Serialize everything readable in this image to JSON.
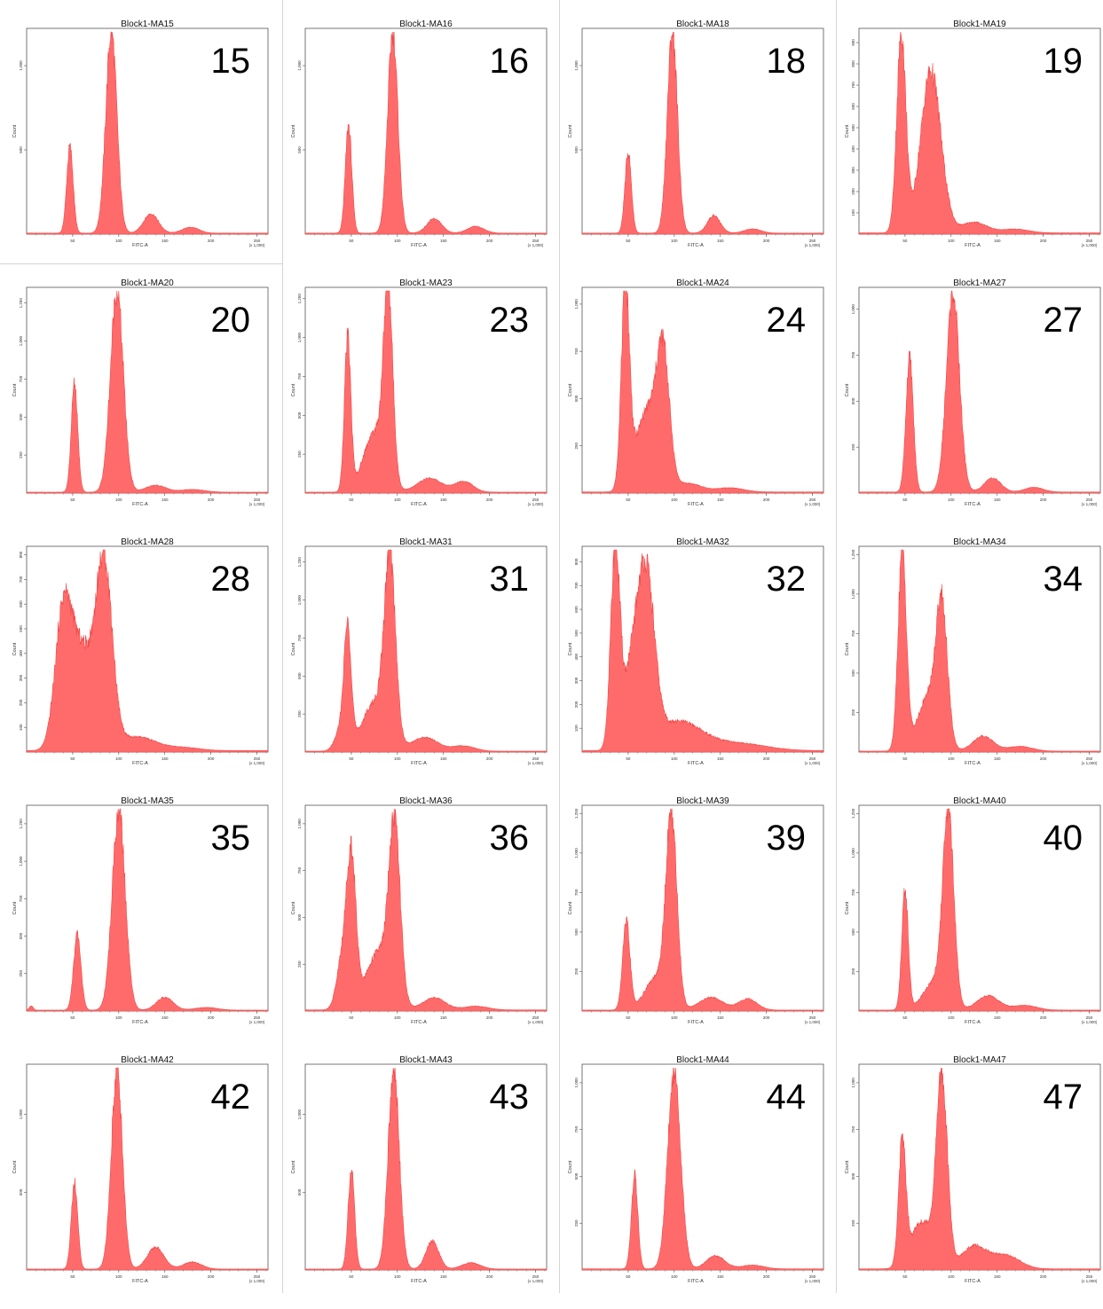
{
  "colors": {
    "fill": "#ff6b6b",
    "stroke": "#f04848",
    "axis": "#555555"
  },
  "chart_data": [
    {
      "type": "area",
      "id": "MA15",
      "title": "Block1-MA15",
      "label": "15",
      "xlabel": "FITC-A",
      "ylabel": "Count",
      "xticks": [
        "50",
        "100",
        "150",
        "200",
        "250",
        "(x 1,000)"
      ],
      "yticks": [
        "500",
        "1,000"
      ],
      "ymax": 1200,
      "peaks": [
        [
          47,
          3.5,
          515
        ],
        [
          92,
          6,
          1200
        ],
        [
          135,
          8,
          115
        ],
        [
          178,
          9,
          35
        ]
      ]
    },
    {
      "type": "area",
      "id": "MA16",
      "title": "Block1-MA16",
      "label": "16",
      "xlabel": "FITC-A",
      "ylabel": "Count",
      "xticks": [
        "50",
        "100",
        "150",
        "200",
        "250",
        "(x 1,000)"
      ],
      "yticks": [
        "500",
        "1,000"
      ],
      "ymax": 1200,
      "peaks": [
        [
          47,
          3.5,
          640
        ],
        [
          95,
          5.5,
          1200
        ],
        [
          140,
          8,
          85
        ],
        [
          185,
          9,
          40
        ]
      ]
    },
    {
      "type": "area",
      "id": "MA18",
      "title": "Block1-MA18",
      "label": "18",
      "xlabel": "FITC-A",
      "ylabel": "Count",
      "xticks": [
        "50",
        "100",
        "150",
        "200",
        "250",
        "(x 1,000)"
      ],
      "yticks": [
        "500",
        "1,000"
      ],
      "ymax": 1200,
      "peaks": [
        [
          50,
          3.5,
          480
        ],
        [
          98,
          5.5,
          1200
        ],
        [
          143,
          7,
          105
        ],
        [
          185,
          9,
          25
        ]
      ]
    },
    {
      "type": "area",
      "id": "MA19",
      "title": "Block1-MA19",
      "label": "19",
      "xlabel": "FITC-A",
      "ylabel": "Count",
      "xticks": [
        "50",
        "100",
        "150",
        "200",
        "250",
        "(x 1,000)"
      ],
      "yticks": [
        "100",
        "200",
        "300",
        "400",
        "500",
        "600",
        "700",
        "800",
        "900"
      ],
      "ymax": 950,
      "peaks": [
        [
          46,
          5,
          930
        ],
        [
          78,
          11,
          760
        ],
        [
          125,
          14,
          50
        ],
        [
          170,
          14,
          18
        ]
      ]
    },
    {
      "type": "area",
      "id": "MA20",
      "title": "Block1-MA20",
      "label": "20",
      "xlabel": "FITC-A",
      "ylabel": "Count",
      "xticks": [
        "50",
        "100",
        "150",
        "200",
        "250",
        "(x 1,000)"
      ],
      "yticks": [
        "250",
        "500",
        "750",
        "1,000",
        "1,250"
      ],
      "ymax": 1330,
      "peaks": [
        [
          52,
          3.5,
          720
        ],
        [
          98,
          7,
          1330
        ],
        [
          140,
          11,
          45
        ],
        [
          180,
          13,
          18
        ]
      ]
    },
    {
      "type": "area",
      "id": "MA23",
      "title": "Block1-MA23",
      "label": "23",
      "xlabel": "FITC-A",
      "ylabel": "Count",
      "xticks": [
        "50",
        "100",
        "150",
        "200",
        "250",
        "(x 1,000)"
      ],
      "yticks": [
        "250",
        "500",
        "750",
        "1,000",
        "1,250"
      ],
      "ymax": 1300,
      "peaks": [
        [
          46,
          3.5,
          980
        ],
        [
          75,
          12,
          380
        ],
        [
          90,
          5,
          1200
        ],
        [
          135,
          13,
          90
        ],
        [
          172,
          10,
          70
        ]
      ]
    },
    {
      "type": "area",
      "id": "MA24",
      "title": "Block1-MA24",
      "label": "24",
      "xlabel": "FITC-A",
      "ylabel": "Count",
      "xticks": [
        "50",
        "100",
        "150",
        "200",
        "250",
        "(x 1,000)"
      ],
      "yticks": [
        "250",
        "500",
        "750",
        "1,000"
      ],
      "ymax": 1070,
      "peaks": [
        [
          47,
          4.5,
          1050
        ],
        [
          70,
          12,
          420
        ],
        [
          88,
          7,
          670
        ],
        [
          115,
          14,
          45
        ],
        [
          160,
          15,
          22
        ]
      ]
    },
    {
      "type": "area",
      "id": "MA27",
      "title": "Block1-MA27",
      "label": "27",
      "xlabel": "FITC-A",
      "ylabel": "Count",
      "xticks": [
        "50",
        "100",
        "150",
        "200",
        "250",
        "(x 1,000)"
      ],
      "yticks": [
        "250",
        "500",
        "750",
        "1,000"
      ],
      "ymax": 1100,
      "peaks": [
        [
          55,
          4,
          730
        ],
        [
          102,
          7,
          1090
        ],
        [
          145,
          9,
          75
        ],
        [
          190,
          10,
          25
        ]
      ]
    },
    {
      "type": "area",
      "id": "MA28",
      "title": "Block1-MA28",
      "label": "28",
      "xlabel": "FITC-A",
      "ylabel": "Count",
      "xticks": [
        "50",
        "100",
        "150",
        "200",
        "250",
        "(x 1,000)"
      ],
      "yticks": [
        "100",
        "200",
        "300",
        "400",
        "500",
        "600",
        "700",
        "800"
      ],
      "ymax": 820,
      "peaks": [
        [
          40,
          9,
          560
        ],
        [
          60,
          11,
          380
        ],
        [
          84,
          9,
          760
        ],
        [
          120,
          20,
          55
        ],
        [
          170,
          18,
          12
        ]
      ]
    },
    {
      "type": "area",
      "id": "MA31",
      "title": "Block1-MA31",
      "label": "31",
      "xlabel": "FITC-A",
      "ylabel": "Count",
      "xticks": [
        "50",
        "100",
        "150",
        "200",
        "250",
        "(x 1,000)"
      ],
      "yticks": [
        "250",
        "500",
        "750",
        "1,000",
        "1,250"
      ],
      "ymax": 1330,
      "peaks": [
        [
          46,
          4,
          760
        ],
        [
          38,
          6,
          130
        ],
        [
          76,
          14,
          320
        ],
        [
          92,
          6,
          1150
        ],
        [
          130,
          14,
          90
        ],
        [
          172,
          12,
          35
        ]
      ]
    },
    {
      "type": "area",
      "id": "MA32",
      "title": "Block1-MA32",
      "label": "32",
      "xlabel": "FITC-A",
      "ylabel": "Count",
      "xticks": [
        "50",
        "100",
        "150",
        "200",
        "250",
        "(x 1,000)"
      ],
      "yticks": [
        "100",
        "200",
        "300",
        "400",
        "500",
        "600",
        "700",
        "800"
      ],
      "ymax": 850,
      "peaks": [
        [
          36,
          5,
          820
        ],
        [
          55,
          10,
          330
        ],
        [
          70,
          9,
          640
        ],
        [
          105,
          25,
          120
        ],
        [
          170,
          30,
          30
        ]
      ]
    },
    {
      "type": "area",
      "id": "MA34",
      "title": "Block1-MA34",
      "label": "34",
      "xlabel": "FITC-A",
      "ylabel": "Count",
      "xticks": [
        "50",
        "100",
        "150",
        "200",
        "250",
        "(x 1,000)"
      ],
      "yticks": [
        "250",
        "500",
        "750",
        "1,000",
        "1,250"
      ],
      "ymax": 1280,
      "peaks": [
        [
          47,
          4.5,
          1270
        ],
        [
          76,
          12,
          350
        ],
        [
          90,
          6,
          820
        ],
        [
          135,
          11,
          95
        ],
        [
          175,
          13,
          30
        ]
      ]
    },
    {
      "type": "area",
      "id": "MA35",
      "title": "Block1-MA35",
      "label": "35",
      "xlabel": "FITC-A",
      "ylabel": "Count",
      "xticks": [
        "50",
        "100",
        "150",
        "200",
        "250",
        "(x 1,000)"
      ],
      "yticks": [
        "250",
        "500",
        "750",
        "1,000",
        "1,250"
      ],
      "ymax": 1350,
      "peaks": [
        [
          55,
          4,
          500
        ],
        [
          100,
          7,
          1340
        ],
        [
          150,
          9,
          85
        ],
        [
          195,
          12,
          18
        ],
        [
          5,
          2,
          30
        ]
      ]
    },
    {
      "type": "area",
      "id": "MA36",
      "title": "Block1-MA36",
      "label": "36",
      "xlabel": "FITC-A",
      "ylabel": "Count",
      "xticks": [
        "50",
        "100",
        "150",
        "200",
        "250",
        "(x 1,000)"
      ],
      "yticks": [
        "250",
        "500",
        "750",
        "1,000"
      ],
      "ymax": 1080,
      "peaks": [
        [
          50,
          5,
          790
        ],
        [
          40,
          6,
          260
        ],
        [
          80,
          14,
          310
        ],
        [
          97,
          6,
          900
        ],
        [
          140,
          12,
          65
        ],
        [
          185,
          13,
          20
        ]
      ]
    },
    {
      "type": "area",
      "id": "MA39",
      "title": "Block1-MA39",
      "label": "39",
      "xlabel": "FITC-A",
      "ylabel": "Count",
      "xticks": [
        "50",
        "100",
        "150",
        "200",
        "250",
        "(x 1,000)"
      ],
      "yticks": [
        "250",
        "500",
        "750",
        "1,000",
        "1,250"
      ],
      "ymax": 1280,
      "peaks": [
        [
          48,
          4,
          550
        ],
        [
          80,
          12,
          200
        ],
        [
          97,
          6,
          1200
        ],
        [
          140,
          13,
          80
        ],
        [
          180,
          10,
          70
        ]
      ]
    },
    {
      "type": "area",
      "id": "MA40",
      "title": "Block1-MA40",
      "label": "40",
      "xlabel": "FITC-A",
      "ylabel": "Count",
      "xticks": [
        "50",
        "100",
        "150",
        "200",
        "250",
        "(x 1,000)"
      ],
      "yticks": [
        "250",
        "500",
        "750",
        "1,000",
        "1,250"
      ],
      "ymax": 1280,
      "peaks": [
        [
          50,
          3.5,
          760
        ],
        [
          82,
          12,
          180
        ],
        [
          97,
          6,
          1200
        ],
        [
          140,
          12,
          90
        ],
        [
          180,
          13,
          30
        ]
      ]
    },
    {
      "type": "area",
      "id": "MA42",
      "title": "Block1-MA42",
      "label": "42",
      "xlabel": "FITC-A",
      "ylabel": "Count",
      "xticks": [
        "50",
        "100",
        "150",
        "200",
        "250",
        "(x 1,000)"
      ],
      "yticks": [
        "500",
        "1,000"
      ],
      "ymax": 1300,
      "peaks": [
        [
          52,
          3.5,
          560
        ],
        [
          98,
          6,
          1290
        ],
        [
          140,
          9,
          140
        ],
        [
          180,
          10,
          45
        ]
      ]
    },
    {
      "type": "area",
      "id": "MA43",
      "title": "Block1-MA43",
      "label": "43",
      "xlabel": "FITC-A",
      "ylabel": "Count",
      "xticks": [
        "50",
        "100",
        "150",
        "200",
        "250",
        "(x 1,000)"
      ],
      "yticks": [
        "500",
        "1,000"
      ],
      "ymax": 1300,
      "peaks": [
        [
          50,
          3.5,
          640
        ],
        [
          96,
          6,
          1290
        ],
        [
          138,
          7,
          180
        ],
        [
          180,
          10,
          40
        ]
      ]
    },
    {
      "type": "area",
      "id": "MA44",
      "title": "Block1-MA44",
      "label": "44",
      "xlabel": "FITC-A",
      "ylabel": "Count",
      "xticks": [
        "50",
        "100",
        "150",
        "200",
        "250",
        "(x 1,000)"
      ],
      "yticks": [
        "250",
        "500",
        "750",
        "1,000"
      ],
      "ymax": 1080,
      "peaks": [
        [
          57,
          3.5,
          500
        ],
        [
          100,
          7,
          1060
        ],
        [
          145,
          10,
          70
        ],
        [
          185,
          12,
          20
        ]
      ]
    },
    {
      "type": "area",
      "id": "MA47",
      "title": "Block1-MA47",
      "label": "47",
      "xlabel": "FITC-A",
      "ylabel": "Count",
      "xticks": [
        "50",
        "100",
        "150",
        "200",
        "250",
        "(x 1,000)"
      ],
      "yticks": [
        "250",
        "500",
        "750",
        "1,000"
      ],
      "ymax": 1080,
      "peaks": [
        [
          47,
          4,
          650
        ],
        [
          68,
          12,
          250
        ],
        [
          90,
          6,
          1000
        ],
        [
          125,
          14,
          120
        ],
        [
          160,
          15,
          70
        ]
      ]
    }
  ]
}
